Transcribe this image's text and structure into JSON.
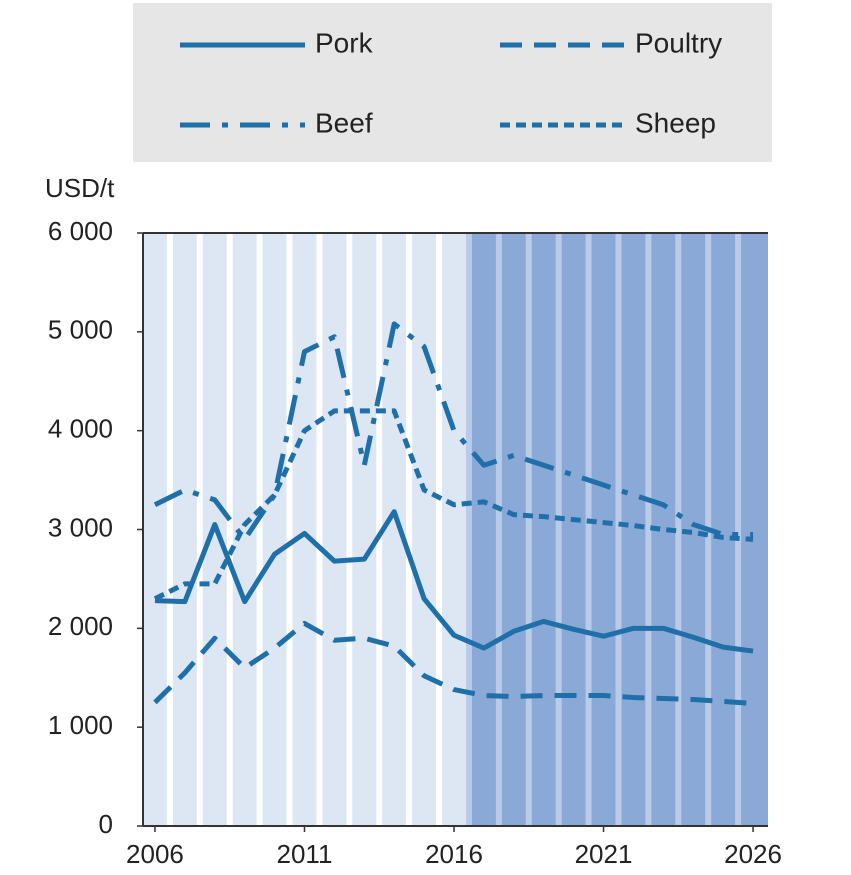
{
  "chart_data": {
    "type": "line",
    "y_axis_label": "USD/t",
    "x": [
      2006,
      2007,
      2008,
      2009,
      2010,
      2011,
      2012,
      2013,
      2014,
      2015,
      2016,
      2017,
      2018,
      2019,
      2020,
      2021,
      2022,
      2023,
      2024,
      2025,
      2026
    ],
    "series": [
      {
        "name": "Pork",
        "color": "#1f6fa8",
        "dash": "none",
        "values": [
          2280,
          2270,
          3050,
          2270,
          2750,
          2960,
          2680,
          2700,
          3180,
          2300,
          1930,
          1800,
          1970,
          2070,
          1990,
          1920,
          2000,
          2000,
          1910,
          1810,
          1770
        ]
      },
      {
        "name": "Poultry",
        "color": "#1f6fa8",
        "dash": "22 12",
        "values": [
          1250,
          1550,
          1900,
          1600,
          1800,
          2050,
          1880,
          1900,
          1820,
          1520,
          1380,
          1320,
          1310,
          1320,
          1320,
          1320,
          1300,
          1290,
          1280,
          1260,
          1240
        ]
      },
      {
        "name": "Beef",
        "color": "#1f6fa8",
        "dash": "30 12 6 12",
        "values": [
          3250,
          3400,
          3300,
          2900,
          3350,
          4800,
          4950,
          3650,
          5080,
          4850,
          4000,
          3650,
          3750,
          3650,
          3550,
          3450,
          3350,
          3250,
          3050,
          2950,
          2950
        ]
      },
      {
        "name": "Sheep",
        "color": "#1f6fa8",
        "dash": "10 6",
        "values": [
          2300,
          2450,
          2450,
          3050,
          3350,
          4000,
          4200,
          4200,
          4200,
          3400,
          3250,
          3280,
          3150,
          3130,
          3100,
          3070,
          3040,
          3000,
          2970,
          2920,
          2900
        ]
      }
    ],
    "xlim": [
      2005.6,
      2026.5
    ],
    "xticks": [
      2006,
      2011,
      2016,
      2021,
      2026
    ],
    "ylim": [
      0,
      6000
    ],
    "yticks": [
      0,
      {
        "value": 1000,
        "label": "1 000"
      },
      {
        "value": 2000,
        "label": "2 000"
      },
      {
        "value": 3000,
        "label": "3 000"
      },
      {
        "value": 4000,
        "label": "4 000"
      },
      {
        "value": 5000,
        "label": "5 000"
      },
      {
        "value": 6000,
        "label": "6 000"
      }
    ],
    "shaded_from": 2016.5,
    "legend": "top"
  }
}
